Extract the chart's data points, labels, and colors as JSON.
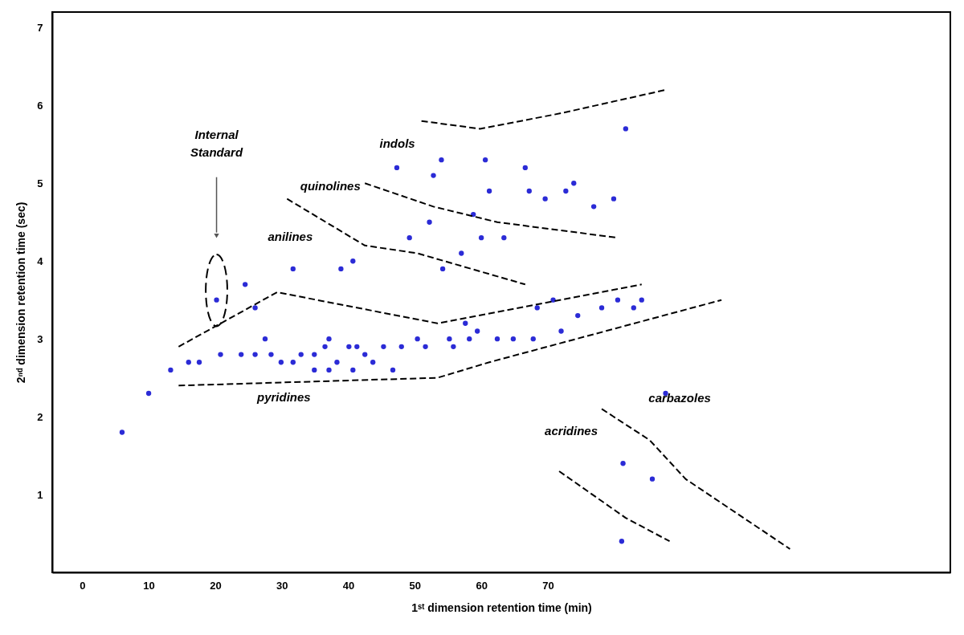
{
  "chart_data": {
    "type": "scatter",
    "xlabel": "1ˢᵗ dimension retention time (min)",
    "ylabel": "2ⁿᵈ dimension retention time (sec)",
    "xlim": [
      -4.5,
      130.5
    ],
    "xticks": [
      0,
      10,
      20,
      30,
      40,
      50,
      60,
      70
    ],
    "ylim": [
      0,
      7.2
    ],
    "yticks": [
      1,
      2,
      3,
      4,
      5,
      6,
      7
    ],
    "grid": false,
    "line_style": "dashed",
    "series": [
      {
        "color": "#2b2bd6",
        "x": [
          6.0,
          10.0,
          13.3,
          16.0,
          17.6,
          20.2,
          20.8,
          23.9,
          24.5,
          26.0,
          26.0,
          27.5,
          28.4,
          29.9,
          31.7,
          32.9,
          31.7,
          34.9,
          34.9,
          36.5,
          37.1,
          38.3,
          40.1,
          40.7,
          41.3,
          37.1,
          38.9,
          40.7,
          42.5,
          43.7,
          45.3,
          46.7,
          47.3,
          48.0,
          49.2,
          50.4,
          51.6,
          52.2,
          52.8,
          54.0,
          54.2,
          55.2,
          55.8,
          57.0,
          57.6,
          58.2,
          59.4,
          58.8,
          60.0,
          60.6,
          61.2,
          62.4,
          63.4,
          64.8,
          66.6,
          67.2,
          67.8,
          68.4,
          69.6,
          70.8,
          72.0,
          72.7,
          73.9,
          74.5,
          76.9,
          78.1,
          79.9,
          80.5,
          82.9,
          84.1,
          81.7,
          87.7,
          81.3,
          85.7,
          81.1
        ],
        "values": [
          1.8,
          2.3,
          2.6,
          2.7,
          2.7,
          3.5,
          2.8,
          2.8,
          3.7,
          3.4,
          2.8,
          3.0,
          2.8,
          2.7,
          2.7,
          2.8,
          3.9,
          2.8,
          2.6,
          2.9,
          3.0,
          2.7,
          2.9,
          2.6,
          2.9,
          2.6,
          3.9,
          4.0,
          2.8,
          2.7,
          2.9,
          2.6,
          5.2,
          2.9,
          4.3,
          3.0,
          2.9,
          4.5,
          5.1,
          5.3,
          3.9,
          3.0,
          2.9,
          4.1,
          3.2,
          3.0,
          3.1,
          4.6,
          4.3,
          5.3,
          4.9,
          3.0,
          4.3,
          3.0,
          5.2,
          4.9,
          3.0,
          3.4,
          4.8,
          3.5,
          3.1,
          4.9,
          5.0,
          3.3,
          4.7,
          3.4,
          4.8,
          3.5,
          3.4,
          3.5,
          5.7,
          2.3,
          1.4,
          1.2,
          0.4
        ]
      },
      {
        "type": "line",
        "color": "#000000",
        "x": [
          51.0,
          59.8,
          72.0,
          87.7
        ],
        "values": [
          5.8,
          5.7,
          5.9,
          6.2
        ]
      },
      {
        "type": "line",
        "color": "#000000",
        "x": [
          42.5,
          52.8,
          62.4,
          80.5
        ],
        "values": [
          5.0,
          4.7,
          4.5,
          4.3
        ]
      },
      {
        "type": "line",
        "color": "#000000",
        "x": [
          30.8,
          42.5,
          50.4,
          66.6
        ],
        "values": [
          4.8,
          4.2,
          4.1,
          3.7
        ]
      },
      {
        "type": "line",
        "color": "#000000",
        "x": [
          14.5,
          29.3,
          53.4,
          84.1
        ],
        "values": [
          2.9,
          3.6,
          3.2,
          3.7
        ]
      },
      {
        "type": "line",
        "color": "#000000",
        "x": [
          14.5,
          53.4,
          61.2,
          96.1
        ],
        "values": [
          2.4,
          2.5,
          2.7,
          3.5
        ]
      },
      {
        "type": "line",
        "color": "#000000",
        "x": [
          78.1,
          85.3,
          90.7,
          106.4
        ],
        "values": [
          2.1,
          1.7,
          1.2,
          0.3
        ]
      },
      {
        "type": "line",
        "color": "#000000",
        "x": [
          71.7,
          81.7,
          88.3
        ],
        "values": [
          1.3,
          0.7,
          0.4
        ]
      }
    ],
    "annotations": [
      "Internal Standard",
      "indols",
      "quinolines",
      "anilines",
      "pyridines",
      "carbazoles",
      "acridines"
    ]
  }
}
